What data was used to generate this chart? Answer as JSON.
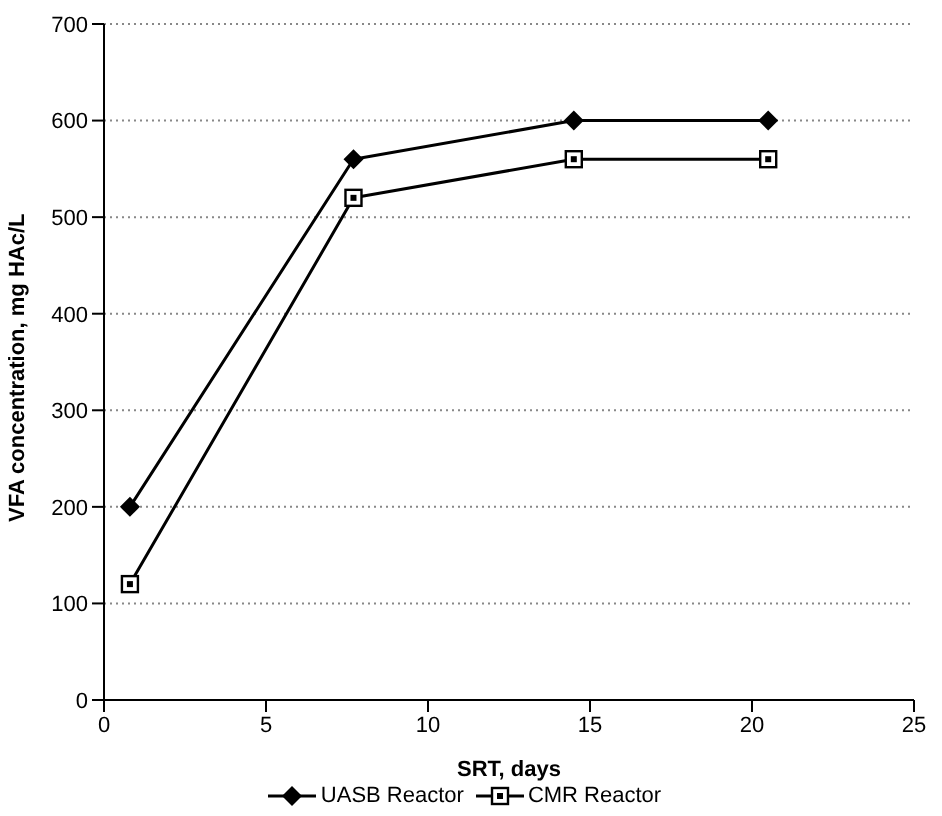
{
  "chart_data": {
    "type": "line",
    "xlabel": "SRT, days",
    "ylabel": "VFA concentration, mg HAc/L",
    "xlim": [
      0,
      25
    ],
    "xticks": [
      0,
      5,
      10,
      15,
      20,
      25
    ],
    "ylim": [
      0,
      700
    ],
    "yticks": [
      0,
      100,
      200,
      300,
      400,
      500,
      600,
      700
    ],
    "grid": "y",
    "legend": "bottom",
    "line_style": "solid",
    "series": [
      {
        "name": "UASB Reactor",
        "color": "#000000",
        "marker": "diamond",
        "x": [
          0.8,
          7.7,
          14.5,
          20.5
        ],
        "values": [
          200,
          560,
          600,
          600
        ]
      },
      {
        "name": "CMR Reactor",
        "color": "#000000",
        "marker": "square",
        "x": [
          0.8,
          7.7,
          14.5,
          20.5
        ],
        "values": [
          120,
          520,
          560,
          560
        ]
      }
    ]
  }
}
